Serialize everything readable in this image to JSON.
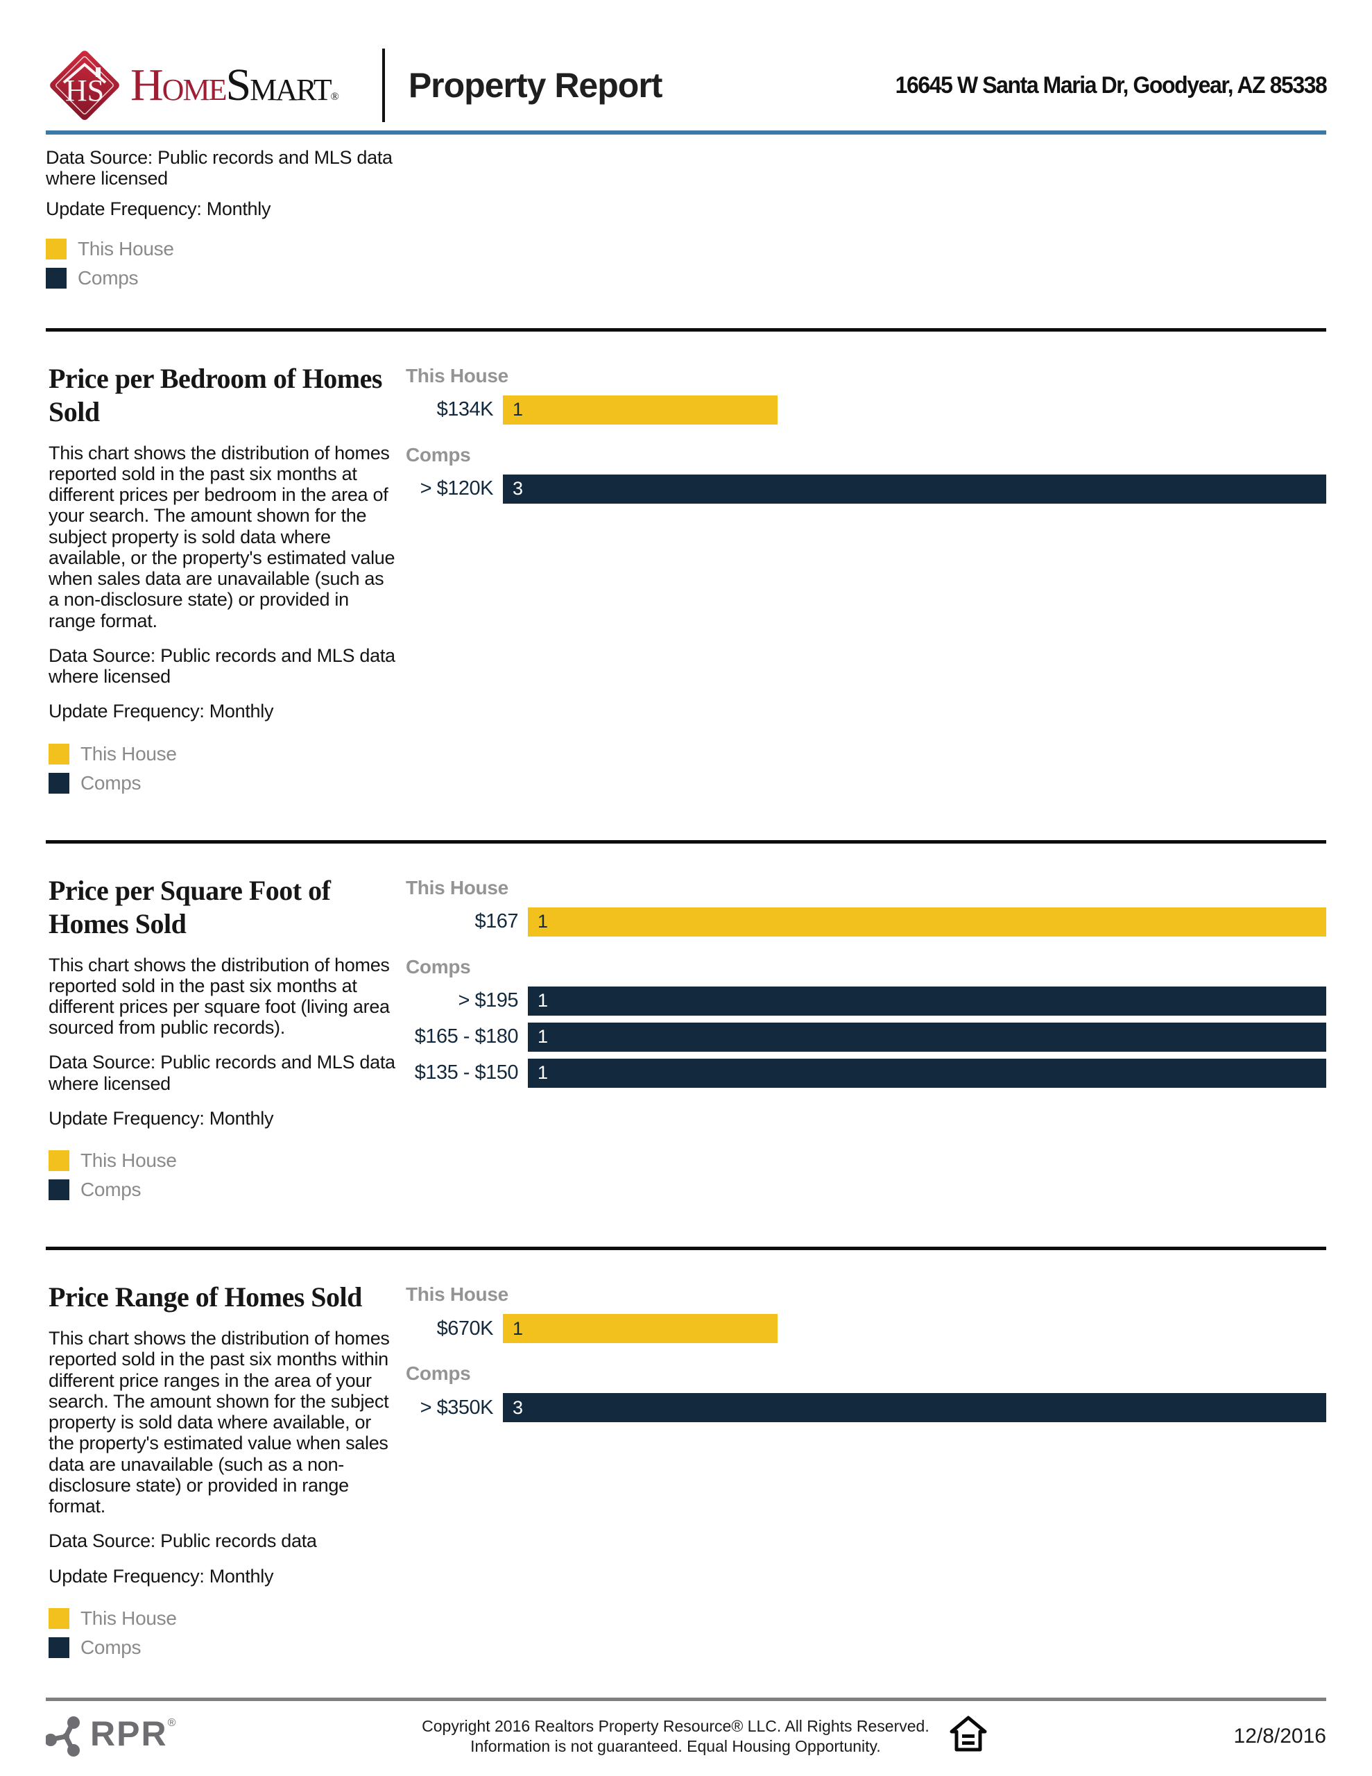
{
  "header": {
    "logo": {
      "monogram": "HS",
      "name_home": "HOME",
      "name_smart": "SMART",
      "registered": "®"
    },
    "title": "Property Report",
    "address": "16645 W Santa Maria Dr, Goodyear, AZ 85338"
  },
  "intro": {
    "data_source": "Data Source: Public records and MLS data where licensed",
    "update_frequency": "Update Frequency: Monthly"
  },
  "legend": {
    "this_house": "This House",
    "comps": "Comps"
  },
  "sections": [
    {
      "title": "Price per Bedroom of Homes Sold",
      "description": "This chart shows the distribution of homes reported sold in the past six months at different prices per bedroom in the area of your search. The amount shown for the subject property is sold data where available, or the property's estimated value when sales data are unavailable (such as a non-disclosure state) or provided in range format.",
      "data_source": "Data Source: Public records and MLS data where licensed",
      "update_frequency": "Update Frequency: Monthly"
    },
    {
      "title": "Price per Square Foot of Homes Sold",
      "description": "This chart shows the distribution of homes reported sold in the past six months at different prices per square foot (living area sourced from public records).",
      "data_source": "Data Source: Public records and MLS data where licensed",
      "update_frequency": "Update Frequency: Monthly"
    },
    {
      "title": "Price Range of Homes Sold",
      "description": "This chart shows the distribution of homes reported sold in the past six months within different price ranges in the area of your search. The amount shown for the subject property is sold data where available, or the property's estimated value when sales data are unavailable (such as a non-disclosure state) or provided in range format.",
      "data_source": "Data Source: Public records data",
      "update_frequency": "Update Frequency: Monthly"
    }
  ],
  "chart_data": [
    {
      "type": "bar",
      "orientation": "horizontal",
      "title": "Price per Bedroom of Homes Sold",
      "max_value": 3,
      "groups": [
        {
          "name": "This House",
          "series": "this_house",
          "bars": [
            {
              "label": "$134K",
              "value": 1
            }
          ]
        },
        {
          "name": "Comps",
          "series": "comps",
          "bars": [
            {
              "label": "> $120K",
              "value": 3
            }
          ]
        }
      ]
    },
    {
      "type": "bar",
      "orientation": "horizontal",
      "title": "Price per Square Foot of Homes Sold",
      "max_value": 1,
      "groups": [
        {
          "name": "This House",
          "series": "this_house",
          "bars": [
            {
              "label": "$167",
              "value": 1
            }
          ]
        },
        {
          "name": "Comps",
          "series": "comps",
          "bars": [
            {
              "label": "> $195",
              "value": 1
            },
            {
              "label": "$165 - $180",
              "value": 1
            },
            {
              "label": "$135 - $150",
              "value": 1
            }
          ]
        }
      ]
    },
    {
      "type": "bar",
      "orientation": "horizontal",
      "title": "Price Range of Homes Sold",
      "max_value": 3,
      "groups": [
        {
          "name": "This House",
          "series": "this_house",
          "bars": [
            {
              "label": "$670K",
              "value": 1
            }
          ]
        },
        {
          "name": "Comps",
          "series": "comps",
          "bars": [
            {
              "label": "> $350K",
              "value": 3
            }
          ]
        }
      ]
    }
  ],
  "footer": {
    "rpr": "RPR",
    "rpr_registered": "®",
    "copyright_line1": "Copyright 2016 Realtors Property Resource® LLC. All Rights Reserved.",
    "copyright_line2": "Information is not guaranteed. Equal Housing Opportunity.",
    "date": "12/8/2016"
  },
  "colors": {
    "this_house": "#F2C11D",
    "comps": "#13293D",
    "header_rule": "#3B79A7",
    "section_rule": "#0D0D0D",
    "footer_rule": "#7F7F7F",
    "brand_red": "#A01E33",
    "bar_label": "#13293D",
    "group_label": "#949494",
    "legend_label": "#8A8A8A"
  }
}
